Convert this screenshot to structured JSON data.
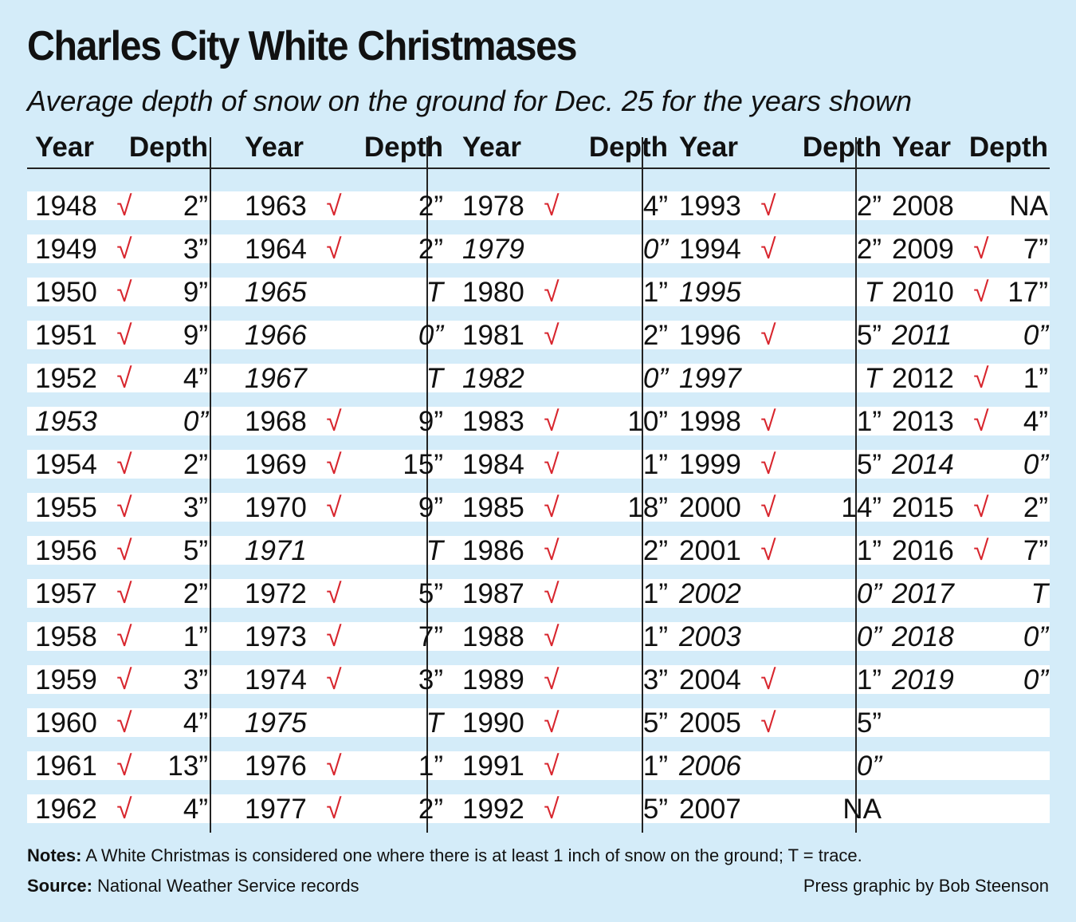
{
  "title": "Charles City White Christmases",
  "subtitle": "Average depth of snow on the ground for Dec. 25 for the years shown",
  "columns": {
    "year_header": "Year",
    "depth_header": "Depth"
  },
  "check_mark": "√",
  "colors": {
    "background": "#d4ecf9",
    "row_band": "#ffffff",
    "check": "#d8262e",
    "text": "#111111"
  },
  "chart_data": {
    "type": "table",
    "columns": [
      "Year",
      "Depth"
    ],
    "rows": [
      {
        "year": "1948",
        "white": true,
        "depth": "2”"
      },
      {
        "year": "1949",
        "white": true,
        "depth": "3”"
      },
      {
        "year": "1950",
        "white": true,
        "depth": "9”"
      },
      {
        "year": "1951",
        "white": true,
        "depth": "9”"
      },
      {
        "year": "1952",
        "white": true,
        "depth": "4”"
      },
      {
        "year": "1953",
        "white": false,
        "depth": "0”"
      },
      {
        "year": "1954",
        "white": true,
        "depth": "2”"
      },
      {
        "year": "1955",
        "white": true,
        "depth": "3”"
      },
      {
        "year": "1956",
        "white": true,
        "depth": "5”"
      },
      {
        "year": "1957",
        "white": true,
        "depth": "2”"
      },
      {
        "year": "1958",
        "white": true,
        "depth": "1”"
      },
      {
        "year": "1959",
        "white": true,
        "depth": "3”"
      },
      {
        "year": "1960",
        "white": true,
        "depth": "4”"
      },
      {
        "year": "1961",
        "white": true,
        "depth": "13”"
      },
      {
        "year": "1962",
        "white": true,
        "depth": "4”"
      },
      {
        "year": "1963",
        "white": true,
        "depth": "2”"
      },
      {
        "year": "1964",
        "white": true,
        "depth": "2”"
      },
      {
        "year": "1965",
        "white": false,
        "depth": "T"
      },
      {
        "year": "1966",
        "white": false,
        "depth": "0”"
      },
      {
        "year": "1967",
        "white": false,
        "depth": "T"
      },
      {
        "year": "1968",
        "white": true,
        "depth": "9”"
      },
      {
        "year": "1969",
        "white": true,
        "depth": "15”"
      },
      {
        "year": "1970",
        "white": true,
        "depth": "9”"
      },
      {
        "year": "1971",
        "white": false,
        "depth": "T"
      },
      {
        "year": "1972",
        "white": true,
        "depth": "5”"
      },
      {
        "year": "1973",
        "white": true,
        "depth": "7”"
      },
      {
        "year": "1974",
        "white": true,
        "depth": "3”"
      },
      {
        "year": "1975",
        "white": false,
        "depth": "T"
      },
      {
        "year": "1976",
        "white": true,
        "depth": "1”"
      },
      {
        "year": "1977",
        "white": true,
        "depth": "2”"
      },
      {
        "year": "1978",
        "white": true,
        "depth": "4”"
      },
      {
        "year": "1979",
        "white": false,
        "depth": "0”"
      },
      {
        "year": "1980",
        "white": true,
        "depth": "1”"
      },
      {
        "year": "1981",
        "white": true,
        "depth": "2”"
      },
      {
        "year": "1982",
        "white": false,
        "depth": "0”"
      },
      {
        "year": "1983",
        "white": true,
        "depth": "10”"
      },
      {
        "year": "1984",
        "white": true,
        "depth": "1”"
      },
      {
        "year": "1985",
        "white": true,
        "depth": "18”"
      },
      {
        "year": "1986",
        "white": true,
        "depth": "2”"
      },
      {
        "year": "1987",
        "white": true,
        "depth": "1”"
      },
      {
        "year": "1988",
        "white": true,
        "depth": "1”"
      },
      {
        "year": "1989",
        "white": true,
        "depth": "3”"
      },
      {
        "year": "1990",
        "white": true,
        "depth": "5”"
      },
      {
        "year": "1991",
        "white": true,
        "depth": "1”"
      },
      {
        "year": "1992",
        "white": true,
        "depth": "5”"
      },
      {
        "year": "1993",
        "white": true,
        "depth": "2”"
      },
      {
        "year": "1994",
        "white": true,
        "depth": "2”"
      },
      {
        "year": "1995",
        "white": false,
        "depth": "T"
      },
      {
        "year": "1996",
        "white": true,
        "depth": "5”"
      },
      {
        "year": "1997",
        "white": false,
        "depth": "T"
      },
      {
        "year": "1998",
        "white": true,
        "depth": "1”"
      },
      {
        "year": "1999",
        "white": true,
        "depth": "5”"
      },
      {
        "year": "2000",
        "white": true,
        "depth": "14”"
      },
      {
        "year": "2001",
        "white": true,
        "depth": "1”"
      },
      {
        "year": "2002",
        "white": false,
        "depth": "0”"
      },
      {
        "year": "2003",
        "white": false,
        "depth": "0”"
      },
      {
        "year": "2004",
        "white": true,
        "depth": "1”"
      },
      {
        "year": "2005",
        "white": true,
        "depth": "5”"
      },
      {
        "year": "2006",
        "white": false,
        "depth": "0”"
      },
      {
        "year": "2007",
        "white": false,
        "depth": "NA",
        "na": true
      },
      {
        "year": "2008",
        "white": false,
        "depth": "NA",
        "na": true
      },
      {
        "year": "2009",
        "white": true,
        "depth": "7”"
      },
      {
        "year": "2010",
        "white": true,
        "depth": "17”"
      },
      {
        "year": "2011",
        "white": false,
        "depth": "0”"
      },
      {
        "year": "2012",
        "white": true,
        "depth": "1”"
      },
      {
        "year": "2013",
        "white": true,
        "depth": "4”"
      },
      {
        "year": "2014",
        "white": false,
        "depth": "0”"
      },
      {
        "year": "2015",
        "white": true,
        "depth": "2”"
      },
      {
        "year": "2016",
        "white": true,
        "depth": "7”"
      },
      {
        "year": "2017",
        "white": false,
        "depth": "T"
      },
      {
        "year": "2018",
        "white": false,
        "depth": "0”"
      },
      {
        "year": "2019",
        "white": false,
        "depth": "0”"
      }
    ]
  },
  "footer": {
    "notes_label": "Notes:",
    "notes_text": " A White Christmas is considered one where there is at least 1 inch of snow on the ground; T = trace.",
    "source_label": "Source:",
    "source_text": " National Weather Service records",
    "credit": "Press graphic by Bob Steenson"
  }
}
